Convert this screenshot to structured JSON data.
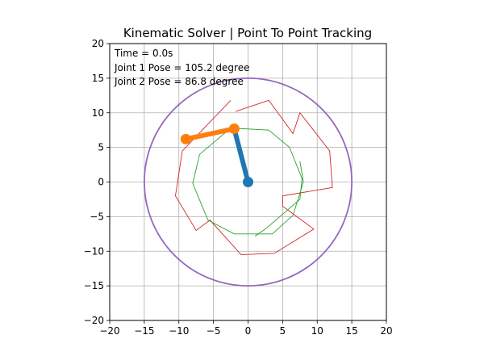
{
  "chart_data": {
    "type": "line",
    "title": "Kinematic Solver | Point To Point Tracking",
    "xlabel": "",
    "ylabel": "",
    "xlim": [
      -20,
      20
    ],
    "ylim": [
      -20,
      20
    ],
    "xticks": [
      "−20",
      "−15",
      "−10",
      "−5",
      "0",
      "5",
      "10",
      "15",
      "20"
    ],
    "yticks": [
      "−20",
      "−15",
      "−10",
      "−5",
      "0",
      "5",
      "10",
      "15",
      "20"
    ],
    "grid": true,
    "annotations": [
      "Time = 0.0s",
      "Joint 1 Pose = 105.2 degree",
      "Joint 2 Pose = 86.8 degree"
    ],
    "workspace_circle": {
      "center": [
        0,
        0
      ],
      "radius": 15,
      "color": "#9467bd"
    },
    "target_path": {
      "color": "#d62728",
      "points": [
        [
          -2.5,
          11.8
        ],
        [
          -9.5,
          4.5
        ],
        [
          -10.5,
          -2.0
        ],
        [
          -7.5,
          -7.0
        ],
        [
          -5.5,
          -5.5
        ],
        [
          -1.0,
          -10.5
        ],
        [
          3.8,
          -10.3
        ],
        [
          9.5,
          -6.8
        ],
        [
          5.0,
          -3.5
        ],
        [
          5.0,
          -2.0
        ],
        [
          12.2,
          -0.8
        ],
        [
          11.8,
          4.5
        ],
        [
          7.5,
          10.0
        ],
        [
          6.5,
          7.0
        ],
        [
          3.0,
          11.8
        ],
        [
          -1.8,
          10.2
        ]
      ]
    },
    "tracked_path": {
      "color": "#2ca02c",
      "points": [
        [
          7.5,
          3.0
        ],
        [
          8.0,
          0.0
        ],
        [
          6.5,
          -4.8
        ],
        [
          3.5,
          -7.5
        ],
        [
          -2.0,
          -7.5
        ],
        [
          -5.8,
          -5.5
        ],
        [
          -8.0,
          -0.2
        ],
        [
          -7.0,
          4.0
        ],
        [
          -2.5,
          7.8
        ],
        [
          3.0,
          7.5
        ],
        [
          6.0,
          5.0
        ],
        [
          7.8,
          0.5
        ],
        [
          7.5,
          -2.5
        ],
        [
          2.5,
          -6.8
        ],
        [
          1.0,
          -7.8
        ],
        [
          1.5,
          -7.5
        ]
      ]
    },
    "arm": {
      "base": [
        0,
        0
      ],
      "joint": [
        -2.0,
        7.7
      ],
      "end": [
        -9.0,
        6.2
      ],
      "link1_color": "#1f77b4",
      "link2_color": "#ff7f0e"
    }
  }
}
